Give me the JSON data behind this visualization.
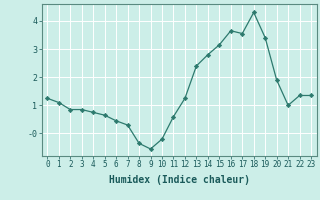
{
  "x": [
    0,
    1,
    2,
    3,
    4,
    5,
    6,
    7,
    8,
    9,
    10,
    11,
    12,
    13,
    14,
    15,
    16,
    17,
    18,
    19,
    20,
    21,
    22,
    23
  ],
  "y": [
    1.25,
    1.1,
    0.85,
    0.85,
    0.75,
    0.65,
    0.45,
    0.3,
    -0.35,
    -0.55,
    -0.2,
    0.6,
    1.25,
    2.4,
    2.8,
    3.15,
    3.65,
    3.55,
    4.3,
    3.4,
    1.9,
    1.0,
    1.35,
    1.35
  ],
  "xlabel": "Humidex (Indice chaleur)",
  "xlim": [
    -0.5,
    23.5
  ],
  "ylim": [
    -0.8,
    4.6
  ],
  "yticks": [
    0,
    1,
    2,
    3,
    4
  ],
  "ytick_labels": [
    "-0",
    "1",
    "2",
    "3",
    "4"
  ],
  "bg_color": "#cceee8",
  "line_color": "#2d7a6e",
  "marker_color": "#2d7a6e",
  "grid_color": "#ffffff",
  "axis_color": "#5a8a80",
  "text_color": "#1a5a5a",
  "font_family": "monospace",
  "xlabel_fontsize": 7.0,
  "tick_fontsize": 5.5
}
